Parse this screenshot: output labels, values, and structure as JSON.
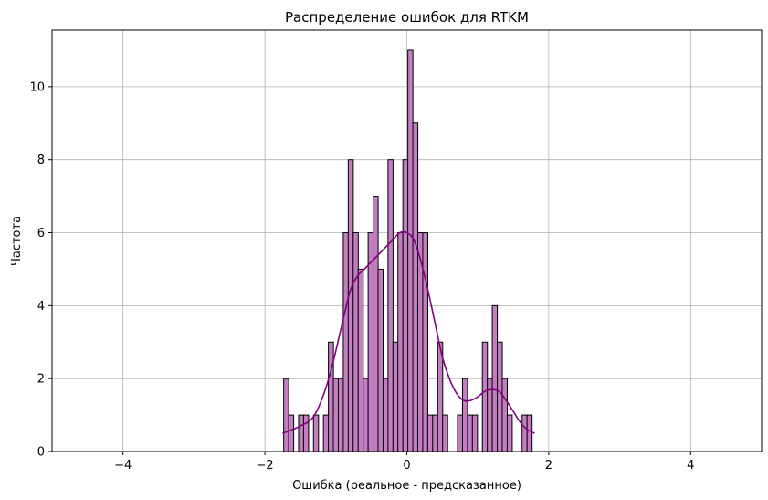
{
  "chart_data": {
    "type": "bar",
    "subtype": "histogram-with-kde",
    "title": "Распределение ошибок для RTKM",
    "xlabel": "Ошибка (реальное - предсказанное)",
    "ylabel": "Частота",
    "xlim": [
      -5,
      5
    ],
    "ylim": [
      0,
      11.55
    ],
    "xticks": [
      -4,
      -2,
      0,
      2,
      4
    ],
    "xtick_labels": [
      "−4",
      "−2",
      "0",
      "2",
      "4"
    ],
    "yticks": [
      0,
      2,
      4,
      6,
      8,
      10
    ],
    "ytick_labels": [
      "0",
      "2",
      "4",
      "6",
      "8",
      "10"
    ],
    "grid": true,
    "colors": {
      "bar_fill": "#c27ec0",
      "bar_edge": "#000000",
      "kde_line": "#800080",
      "grid": "#b0b0b0"
    },
    "bin_width": 0.0711,
    "bins": [
      {
        "x": -1.7,
        "count": 2
      },
      {
        "x": -1.63,
        "count": 1
      },
      {
        "x": -1.56,
        "count": 0
      },
      {
        "x": -1.49,
        "count": 1
      },
      {
        "x": -1.42,
        "count": 1
      },
      {
        "x": -1.35,
        "count": 0
      },
      {
        "x": -1.28,
        "count": 1
      },
      {
        "x": -1.21,
        "count": 0
      },
      {
        "x": -1.14,
        "count": 1
      },
      {
        "x": -1.07,
        "count": 3
      },
      {
        "x": -1.0,
        "count": 2
      },
      {
        "x": -0.93,
        "count": 2
      },
      {
        "x": -0.86,
        "count": 6
      },
      {
        "x": -0.79,
        "count": 8
      },
      {
        "x": -0.72,
        "count": 6
      },
      {
        "x": -0.65,
        "count": 5
      },
      {
        "x": -0.58,
        "count": 2
      },
      {
        "x": -0.51,
        "count": 6
      },
      {
        "x": -0.44,
        "count": 7
      },
      {
        "x": -0.37,
        "count": 5
      },
      {
        "x": -0.3,
        "count": 2
      },
      {
        "x": -0.23,
        "count": 8
      },
      {
        "x": -0.16,
        "count": 3
      },
      {
        "x": -0.09,
        "count": 6
      },
      {
        "x": -0.02,
        "count": 8
      },
      {
        "x": 0.05,
        "count": 11
      },
      {
        "x": 0.12,
        "count": 9
      },
      {
        "x": 0.19,
        "count": 6
      },
      {
        "x": 0.26,
        "count": 6
      },
      {
        "x": 0.33,
        "count": 1
      },
      {
        "x": 0.4,
        "count": 1
      },
      {
        "x": 0.47,
        "count": 3
      },
      {
        "x": 0.54,
        "count": 1
      },
      {
        "x": 0.61,
        "count": 0
      },
      {
        "x": 0.68,
        "count": 0
      },
      {
        "x": 0.75,
        "count": 1
      },
      {
        "x": 0.82,
        "count": 2
      },
      {
        "x": 0.89,
        "count": 1
      },
      {
        "x": 0.96,
        "count": 1
      },
      {
        "x": 1.03,
        "count": 0
      },
      {
        "x": 1.1,
        "count": 3
      },
      {
        "x": 1.17,
        "count": 2
      },
      {
        "x": 1.24,
        "count": 4
      },
      {
        "x": 1.31,
        "count": 3
      },
      {
        "x": 1.38,
        "count": 2
      },
      {
        "x": 1.45,
        "count": 1
      },
      {
        "x": 1.52,
        "count": 0
      },
      {
        "x": 1.59,
        "count": 0
      },
      {
        "x": 1.66,
        "count": 1
      },
      {
        "x": 1.73,
        "count": 1
      }
    ],
    "kde": {
      "x": [
        -1.75,
        -1.5,
        -1.3,
        -1.1,
        -0.9,
        -0.8,
        -0.7,
        -0.6,
        -0.5,
        -0.4,
        -0.3,
        -0.2,
        -0.1,
        0.0,
        0.1,
        0.2,
        0.3,
        0.4,
        0.5,
        0.6,
        0.7,
        0.8,
        0.9,
        1.0,
        1.1,
        1.2,
        1.3,
        1.4,
        1.5,
        1.6,
        1.7,
        1.8
      ],
      "y": [
        0.5,
        0.7,
        1.0,
        2.0,
        3.6,
        4.4,
        4.8,
        5.0,
        5.2,
        5.4,
        5.6,
        5.8,
        6.0,
        6.0,
        5.8,
        5.2,
        4.4,
        3.5,
        2.6,
        2.0,
        1.6,
        1.4,
        1.4,
        1.5,
        1.65,
        1.7,
        1.65,
        1.4,
        1.1,
        0.8,
        0.6,
        0.5
      ]
    }
  }
}
